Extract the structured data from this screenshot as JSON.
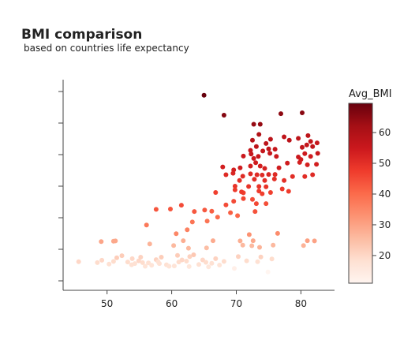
{
  "chart_data": {
    "type": "scatter",
    "title": "BMI comparison",
    "subtitle": "based on countries life expectancy",
    "xlabel": "",
    "ylabel": "",
    "xlim": [
      43.2,
      85.2
    ],
    "x_ticks": [
      50,
      60,
      70,
      80
    ],
    "y_axis_ticks_unlabeled": 7,
    "grid": false,
    "colorbar": {
      "title": "Avg_BMI",
      "range": [
        11,
        69.5
      ],
      "ticks": [
        20,
        30,
        40,
        50,
        60
      ],
      "colorscale": "Reds"
    },
    "point_fields": [
      "life_expectancy",
      "y_value",
      "avg_bmi"
    ],
    "points": [
      [
        65,
        64.8,
        69.5
      ],
      [
        68.1,
        58.2,
        66
      ],
      [
        72.7,
        55.2,
        64
      ],
      [
        73.7,
        55.2,
        64
      ],
      [
        76.9,
        58.7,
        65
      ],
      [
        80.2,
        59,
        65.5
      ],
      [
        72.5,
        49.9,
        59
      ],
      [
        73.5,
        51.8,
        60
      ],
      [
        74.6,
        48.8,
        58
      ],
      [
        75.3,
        50.2,
        58
      ],
      [
        76,
        46.9,
        56
      ],
      [
        77.4,
        51,
        57
      ],
      [
        78.2,
        49.9,
        58
      ],
      [
        79.6,
        50.5,
        57.5
      ],
      [
        81.1,
        51.4,
        57.5
      ],
      [
        81.5,
        49.5,
        56.5
      ],
      [
        82.5,
        49,
        56
      ],
      [
        72.2,
        46.5,
        56
      ],
      [
        73.1,
        47.8,
        57.5
      ],
      [
        74.1,
        46.3,
        56
      ],
      [
        75,
        47,
        57
      ],
      [
        76.2,
        44.5,
        55
      ],
      [
        80.2,
        47.5,
        57
      ],
      [
        80.9,
        48.3,
        56.5
      ],
      [
        81.8,
        47.8,
        57
      ],
      [
        71.1,
        44.6,
        55
      ],
      [
        72.3,
        45.3,
        56
      ],
      [
        73.4,
        44.5,
        55.5
      ],
      [
        75.2,
        45.5,
        56
      ],
      [
        72.7,
        43.8,
        55
      ],
      [
        79.6,
        44.3,
        55
      ],
      [
        80.6,
        45.4,
        54.5
      ],
      [
        67.9,
        41,
        53.5
      ],
      [
        69.6,
        40,
        53.5
      ],
      [
        70.6,
        40.7,
        54
      ],
      [
        72.2,
        41.3,
        53.5
      ],
      [
        73,
        42.4,
        54
      ],
      [
        73.7,
        41.3,
        53.5
      ],
      [
        74.4,
        40.5,
        53
      ],
      [
        76.6,
        40.7,
        54
      ],
      [
        77.9,
        42.3,
        54
      ],
      [
        79.8,
        42.5,
        53
      ],
      [
        81,
        41.7,
        53
      ],
      [
        82.4,
        41.9,
        53.5
      ],
      [
        80,
        43.5,
        54
      ],
      [
        81.5,
        44.5,
        54
      ],
      [
        82.6,
        45.5,
        55.5
      ],
      [
        68.4,
        38.4,
        51
      ],
      [
        69.5,
        38.9,
        52
      ],
      [
        71,
        37.9,
        51
      ],
      [
        72.2,
        38.7,
        51
      ],
      [
        73.2,
        38.4,
        51
      ],
      [
        74,
        38.3,
        51
      ],
      [
        75,
        38.5,
        52
      ],
      [
        76,
        38.5,
        51
      ],
      [
        78.7,
        37.8,
        50.5
      ],
      [
        80.6,
        37.8,
        50.5
      ],
      [
        81.8,
        38.4,
        51
      ],
      [
        77.4,
        36.5,
        50
      ],
      [
        70.5,
        36.5,
        50
      ],
      [
        72.8,
        36.9,
        50.5
      ],
      [
        74.4,
        36.5,
        50
      ],
      [
        75.9,
        37,
        50
      ],
      [
        69.8,
        34.6,
        49
      ],
      [
        71.9,
        34.5,
        49
      ],
      [
        73.5,
        34.5,
        49
      ],
      [
        74.6,
        34.4,
        49
      ],
      [
        77.1,
        33.7,
        48
      ],
      [
        66.8,
        32.5,
        47
      ],
      [
        69.8,
        33.4,
        48
      ],
      [
        71.1,
        32.4,
        47
      ],
      [
        73.5,
        33,
        47.5
      ],
      [
        74,
        32.1,
        47
      ],
      [
        75.3,
        32.5,
        47
      ],
      [
        78.1,
        32.9,
        47.5
      ],
      [
        70.8,
        32.7,
        48
      ],
      [
        71.1,
        30.5,
        46
      ],
      [
        72.5,
        30.2,
        45
      ],
      [
        73.1,
        28.8,
        45.5
      ],
      [
        72.9,
        26.2,
        44
      ],
      [
        68.4,
        28.4,
        45
      ],
      [
        69.6,
        29.6,
        45
      ],
      [
        74.6,
        28.8,
        44.5
      ],
      [
        61.5,
        28.3,
        45
      ],
      [
        59.8,
        27,
        43.5
      ],
      [
        57.6,
        26.9,
        43.5
      ],
      [
        63.5,
        26.2,
        43
      ],
      [
        65.1,
        26.7,
        43
      ],
      [
        66.2,
        26.3,
        42
      ],
      [
        69.1,
        25.8,
        42
      ],
      [
        67.1,
        24.3,
        40
      ],
      [
        70.2,
        24.8,
        40.5
      ],
      [
        63.2,
        22.7,
        38.5
      ],
      [
        65.5,
        23,
        38.5
      ],
      [
        56.1,
        21.7,
        37.5
      ],
      [
        62.4,
        20.1,
        36
      ],
      [
        60.7,
        18.8,
        35
      ],
      [
        76.4,
        18.9,
        34
      ],
      [
        72,
        18.5,
        33
      ],
      [
        81,
        16.5,
        30.5
      ],
      [
        82.1,
        16.4,
        30
      ],
      [
        49.1,
        16.2,
        29.5
      ],
      [
        51.3,
        16.4,
        29
      ],
      [
        51,
        16.3,
        29
      ],
      [
        56.6,
        15.4,
        27
      ],
      [
        61.8,
        16.5,
        28
      ],
      [
        66.4,
        16.5,
        28.5
      ],
      [
        70.6,
        16.4,
        28
      ],
      [
        72.6,
        16.5,
        29
      ],
      [
        80.4,
        14.9,
        27
      ],
      [
        73.6,
        14.3,
        27
      ],
      [
        60.3,
        14.9,
        26
      ],
      [
        62.6,
        14,
        26
      ],
      [
        65.4,
        14.1,
        25
      ],
      [
        71,
        15,
        26
      ],
      [
        72.4,
        14.8,
        26
      ],
      [
        75.7,
        15,
        26
      ],
      [
        45.6,
        9.5,
        20
      ],
      [
        48.5,
        9.2,
        19
      ],
      [
        49.2,
        10,
        20
      ],
      [
        50.3,
        8.7,
        18
      ],
      [
        51,
        9.6,
        19
      ],
      [
        51.5,
        10.8,
        22
      ],
      [
        53.2,
        9.4,
        19
      ],
      [
        53.8,
        8.5,
        18
      ],
      [
        54.3,
        8.9,
        18
      ],
      [
        54.9,
        9.8,
        20
      ],
      [
        55.5,
        9.2,
        19
      ],
      [
        55.9,
        8,
        17
      ],
      [
        56.4,
        9.1,
        18
      ],
      [
        56.9,
        8.3,
        17
      ],
      [
        57.6,
        10.2,
        21
      ],
      [
        58.1,
        8.9,
        18
      ],
      [
        58.4,
        11,
        22
      ],
      [
        59.2,
        8.5,
        18
      ],
      [
        59.6,
        8,
        17
      ],
      [
        60.4,
        8.1,
        17
      ],
      [
        61.1,
        9.4,
        19
      ],
      [
        61.6,
        10.1,
        20
      ],
      [
        62.3,
        9.7,
        19
      ],
      [
        62.7,
        7.9,
        16
      ],
      [
        63.4,
        11.8,
        23
      ],
      [
        64.2,
        8.6,
        18
      ],
      [
        64.8,
        10.1,
        20
      ],
      [
        65.3,
        9.3,
        19
      ],
      [
        65.7,
        7.8,
        16
      ],
      [
        66.2,
        9,
        18
      ],
      [
        66.8,
        10.5,
        21
      ],
      [
        67.4,
        8.4,
        17
      ],
      [
        68.1,
        9.6,
        19
      ],
      [
        69.7,
        7.3,
        13
      ],
      [
        70.3,
        11.2,
        21
      ],
      [
        71.6,
        9.8,
        19
      ],
      [
        73.3,
        9.5,
        18
      ],
      [
        73.8,
        11.1,
        21
      ],
      [
        75.5,
        10.4,
        19
      ],
      [
        74.9,
        6.1,
        11
      ],
      [
        52.3,
        11.5,
        22
      ],
      [
        53.9,
        10.5,
        20
      ],
      [
        55.2,
        11,
        21
      ],
      [
        57.9,
        9.5,
        18
      ],
      [
        60.9,
        11.6,
        22
      ],
      [
        62.8,
        11.2,
        21
      ]
    ]
  }
}
